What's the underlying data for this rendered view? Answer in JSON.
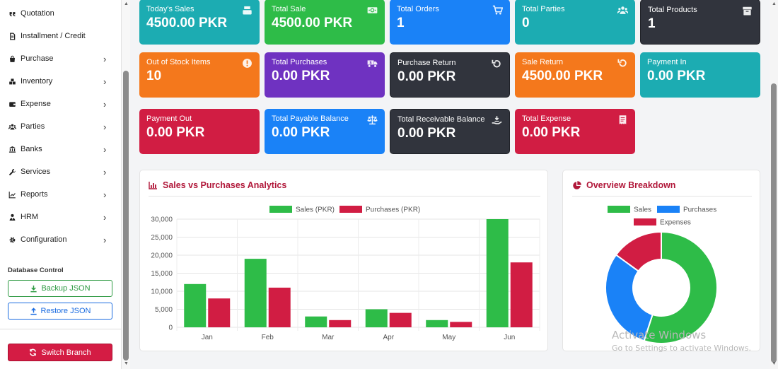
{
  "sidebar": {
    "items": [
      {
        "label": "Quotation",
        "icon": "quote-icon",
        "chevron": false
      },
      {
        "label": "Installment / Credit",
        "icon": "file-icon",
        "chevron": false
      },
      {
        "label": "Purchase",
        "icon": "bag-icon",
        "chevron": true
      },
      {
        "label": "Inventory",
        "icon": "boxes-icon",
        "chevron": true
      },
      {
        "label": "Expense",
        "icon": "wallet-icon",
        "chevron": true
      },
      {
        "label": "Parties",
        "icon": "users-icon",
        "chevron": true
      },
      {
        "label": "Banks",
        "icon": "bank-icon",
        "chevron": true
      },
      {
        "label": "Services",
        "icon": "wrench-icon",
        "chevron": true
      },
      {
        "label": "Reports",
        "icon": "chart-line-icon",
        "chevron": true
      },
      {
        "label": "HRM",
        "icon": "user-tie-icon",
        "chevron": true
      },
      {
        "label": "Configuration",
        "icon": "gear-icon",
        "chevron": true
      }
    ],
    "db_title": "Database Control",
    "backup_label": "Backup JSON",
    "restore_label": "Restore JSON",
    "switch_label": "Switch Branch"
  },
  "cards": [
    {
      "title": "Today's Sales",
      "value": "4500.00 PKR",
      "color": "#1cacb2",
      "icon": "cash-register-icon"
    },
    {
      "title": "Total Sale",
      "value": "4500.00 PKR",
      "color": "#2ebc48",
      "icon": "money-bill-icon"
    },
    {
      "title": "Total Orders",
      "value": "1",
      "color": "#1a82f7",
      "icon": "cart-icon"
    },
    {
      "title": "Total Parties",
      "value": "0",
      "color": "#1cacb2",
      "icon": "users-icon"
    },
    {
      "title": "Total Products",
      "value": "1",
      "color": "#31343d",
      "icon": "box-icon"
    },
    {
      "title": "Out of Stock Items",
      "value": "10",
      "color": "#f4781c",
      "icon": "exclamation-icon"
    },
    {
      "title": "Total Purchases",
      "value": "0.00 PKR",
      "color": "#6f32c1",
      "icon": "truck-money-icon"
    },
    {
      "title": "Purchase Return",
      "value": "0.00 PKR",
      "color": "#31343d",
      "icon": "undo-icon"
    },
    {
      "title": "Sale Return",
      "value": "4500.00 PKR",
      "color": "#f4781c",
      "icon": "undo-icon"
    },
    {
      "title": "Payment In",
      "value": "0.00 PKR",
      "color": "#1cacb2",
      "icon": ""
    },
    {
      "title": "Payment Out",
      "value": "0.00 PKR",
      "color": "#d11d43",
      "icon": ""
    },
    {
      "title": "Total Payable Balance",
      "value": "0.00 PKR",
      "color": "#1a82f7",
      "icon": "scale-icon"
    },
    {
      "title": "Total Receivable Balance",
      "value": "0.00 PKR",
      "color": "#31343d",
      "icon": "hand-holding-money-icon"
    },
    {
      "title": "Total Expense",
      "value": "0.00 PKR",
      "color": "#d11d43",
      "icon": "receipt-icon"
    }
  ],
  "panels": {
    "analytics_title": "Sales vs Purchases Analytics",
    "overview_title": "Overview Breakdown"
  },
  "chart_data": [
    {
      "type": "bar",
      "title": "Sales vs Purchases Analytics",
      "categories": [
        "Jan",
        "Feb",
        "Mar",
        "Apr",
        "May",
        "Jun"
      ],
      "series": [
        {
          "name": "Sales (PKR)",
          "color": "#2ebc48",
          "values": [
            12000,
            19000,
            3000,
            5000,
            2000,
            30000
          ]
        },
        {
          "name": "Purchases (PKR)",
          "color": "#d11d43",
          "values": [
            8000,
            11000,
            2000,
            4000,
            1500,
            18000
          ]
        }
      ],
      "yticks": [
        "0",
        "5,000",
        "10,000",
        "15,000",
        "20,000",
        "25,000",
        "30,000"
      ],
      "ylim": [
        0,
        30000
      ],
      "grid": true,
      "legend": "top-center"
    },
    {
      "type": "pie",
      "title": "Overview Breakdown",
      "labels": [
        "Sales",
        "Purchases",
        "Expenses"
      ],
      "colors": [
        "#2ebc48",
        "#1a82f7",
        "#d11d43"
      ],
      "values": [
        55,
        30,
        15
      ],
      "legend": "top-center"
    }
  ],
  "watermark": {
    "line1": "Activate Windows",
    "line2": "Go to Settings to activate Windows."
  }
}
